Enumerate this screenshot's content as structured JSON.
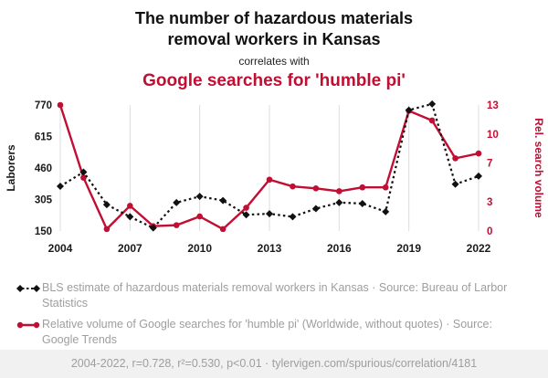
{
  "colors": {
    "accent_red": "#c10e33",
    "series_black": "#111111",
    "grid": "#dcdcdc",
    "muted_text": "#9e9e9e"
  },
  "header": {
    "title_lines": [
      "The number of hazardous materials",
      "removal workers in Kansas"
    ],
    "connector": "correlates with",
    "highlight": "Google searches for 'humble pi'"
  },
  "chart_data": {
    "type": "line",
    "x": [
      2004,
      2005,
      2006,
      2007,
      2008,
      2009,
      2010,
      2011,
      2012,
      2013,
      2014,
      2015,
      2016,
      2017,
      2018,
      2019,
      2020,
      2021,
      2022
    ],
    "x_ticks": [
      2004,
      2007,
      2010,
      2013,
      2016,
      2019,
      2022
    ],
    "left_axis": {
      "label": "Laborers",
      "ticks": [
        150,
        305,
        460,
        615,
        770
      ],
      "range": [
        150,
        770
      ]
    },
    "right_axis": {
      "label": "Rel. search volume",
      "ticks": [
        0,
        3,
        7,
        10,
        13
      ],
      "range": [
        0,
        13
      ]
    },
    "grid": "vertical",
    "legend_position": "bottom",
    "series": [
      {
        "name": "BLS estimate of hazardous materials removal workers in Kansas",
        "axis": "left",
        "color": "#111111",
        "line_style": "dotted",
        "marker": "diamond",
        "values": [
          370,
          440,
          280,
          220,
          165,
          290,
          320,
          300,
          230,
          235,
          220,
          260,
          290,
          285,
          245,
          745,
          775,
          380,
          420
        ]
      },
      {
        "name": "Relative volume of Google searches for 'humble pi'",
        "axis": "right",
        "color": "#c10e33",
        "line_style": "solid",
        "marker": "circle",
        "values": [
          13,
          5.5,
          0.2,
          2.6,
          0.5,
          0.6,
          1.5,
          0.2,
          2.4,
          5.3,
          4.6,
          4.4,
          4.1,
          4.5,
          4.5,
          12.4,
          11.4,
          7.5,
          8
        ]
      }
    ]
  },
  "legend": {
    "items": [
      {
        "label": "BLS estimate of hazardous materials removal workers in Kansas · Source: Bureau of Larbor Statistics"
      },
      {
        "label": "Relative volume of Google searches for 'humble pi' (Worldwide, without quotes) · Source: Google Trends"
      }
    ]
  },
  "footer": {
    "text": "2004-2022, r=0.728, r²=0.530, p<0.01 · tylervigen.com/spurious/correlation/4181"
  }
}
